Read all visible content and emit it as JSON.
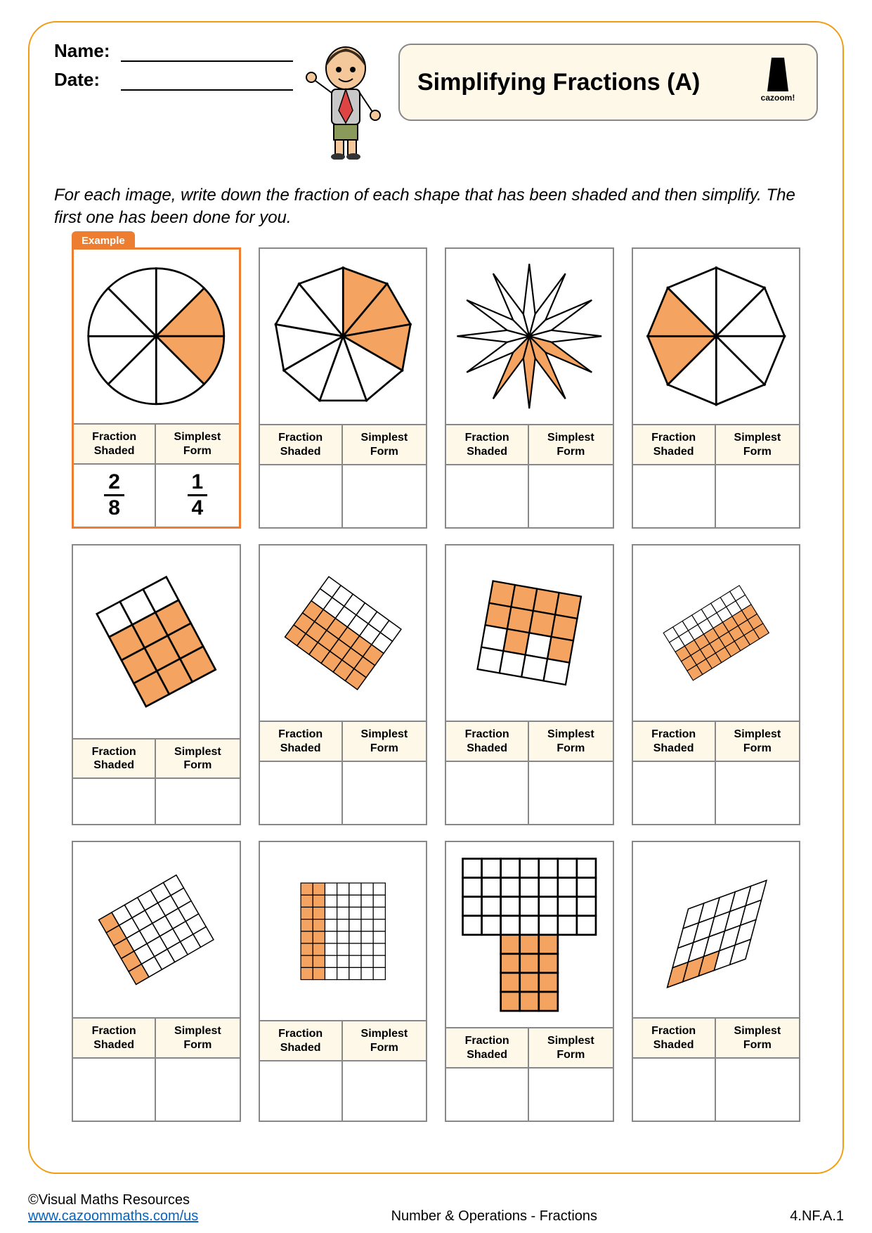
{
  "header": {
    "name_label": "Name:",
    "date_label": "Date:",
    "title": "Simplifying Fractions (A)",
    "logo_text": "cazoom!"
  },
  "instructions": "For each image, write down the fraction of each shape that has been shaded and then simplify. The first one has been done for you.",
  "example_tab": "Example",
  "column_labels": {
    "fraction_shaded": "Fraction Shaded",
    "simplest_form": "Simplest Form"
  },
  "colors": {
    "shade": "#f4a460",
    "stroke": "#000000",
    "frame": "#f39c12",
    "example_border": "#ed7d31",
    "label_bg": "#fdf8e8"
  },
  "cards": [
    {
      "is_example": true,
      "answer": {
        "numerator": "2",
        "denominator": "8",
        "simp_numerator": "1",
        "simp_denominator": "4"
      },
      "shape": {
        "type": "pie",
        "slices": 8,
        "shaded": [
          1,
          2
        ]
      }
    },
    {
      "shape": {
        "type": "polygon_fan",
        "sides": 9,
        "shaded": [
          0,
          1,
          2
        ]
      }
    },
    {
      "shape": {
        "type": "star",
        "points": 12,
        "shaded": [
          4,
          5,
          6,
          7
        ]
      }
    },
    {
      "shape": {
        "type": "polygon_fan",
        "sides": 8,
        "shaded": [
          5,
          6
        ]
      }
    },
    {
      "shape": {
        "type": "grid_rect",
        "cols": 3,
        "rows": 4,
        "rotate": -28,
        "shaded": [
          3,
          4,
          5,
          6,
          7,
          8,
          9,
          10,
          11
        ]
      }
    },
    {
      "shape": {
        "type": "grid_rect",
        "cols": 6,
        "rows": 5,
        "rotate": 36,
        "shaded": [
          12,
          13,
          14,
          15,
          16,
          17,
          18,
          19,
          20,
          21,
          22,
          23,
          24,
          25,
          26,
          27,
          28,
          29
        ]
      }
    },
    {
      "shape": {
        "type": "grid_rect",
        "cols": 4,
        "rows": 4,
        "rotate": 10,
        "shaded": [
          0,
          1,
          2,
          3,
          4,
          5,
          6,
          7,
          9,
          11
        ]
      }
    },
    {
      "shape": {
        "type": "grid_rect",
        "cols": 8,
        "rows": 5,
        "rotate": -32,
        "shaded": [
          16,
          17,
          18,
          19,
          20,
          21,
          22,
          23,
          24,
          25,
          26,
          27,
          28,
          29,
          30,
          31,
          32,
          33,
          34,
          35,
          36,
          37,
          38,
          39
        ]
      }
    },
    {
      "shape": {
        "type": "grid_rect",
        "cols": 6,
        "rows": 5,
        "rotate": -30,
        "shaded": [
          0,
          6,
          12,
          18,
          24
        ]
      }
    },
    {
      "shape": {
        "type": "grid_rect",
        "cols": 7,
        "rows": 8,
        "rotate": 0,
        "shaded": [
          0,
          1,
          7,
          8,
          14,
          15,
          21,
          22,
          28,
          29,
          35,
          36,
          42,
          43,
          49,
          50
        ]
      }
    },
    {
      "shape": {
        "type": "t_shape",
        "top_cols": 7,
        "top_rows": 4,
        "stem_cols": 3,
        "stem_rows": 4,
        "shaded_stem": true
      }
    },
    {
      "shape": {
        "type": "parallelogram_grid",
        "cols": 5,
        "rows": 4,
        "skew": 35,
        "shaded": [
          15,
          16,
          17
        ]
      }
    }
  ],
  "footer": {
    "copyright": "©Visual Maths Resources",
    "url_text": "www.cazoommaths.com/us",
    "center": "Number & Operations - Fractions",
    "standard": "4.NF.A.1"
  }
}
